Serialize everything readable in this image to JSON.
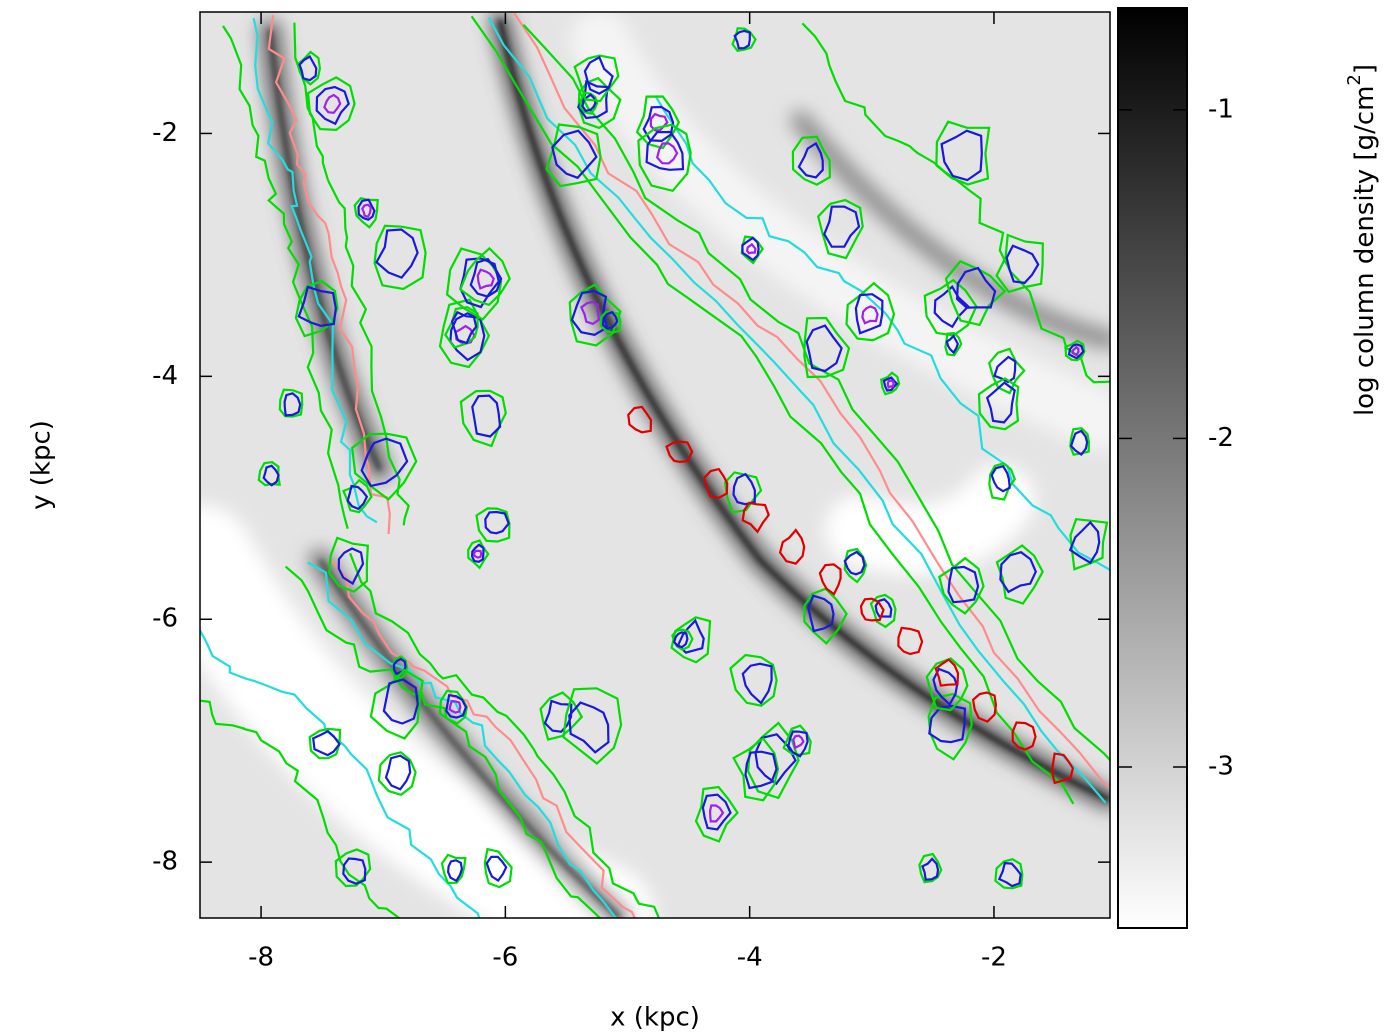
{
  "chart_data": {
    "type": "image",
    "xlabel": "x (kpc)",
    "ylabel": "y (kpc)",
    "xlim": [
      -8.5,
      -1.05
    ],
    "xticks": [
      -8,
      -6,
      -4,
      -2
    ],
    "ylim": [
      -8.46,
      -1.0
    ],
    "yticks": [
      -8,
      -6,
      -4,
      -2
    ],
    "colorbar": {
      "label": "log column density [g/cm",
      "label_superscript": "2",
      "label_end": "]",
      "lim": [
        -3.49,
        -0.69
      ],
      "ticks": [
        -3,
        -2,
        -1
      ],
      "colors": [
        "#ffffff",
        "#000000"
      ]
    }
  }
}
